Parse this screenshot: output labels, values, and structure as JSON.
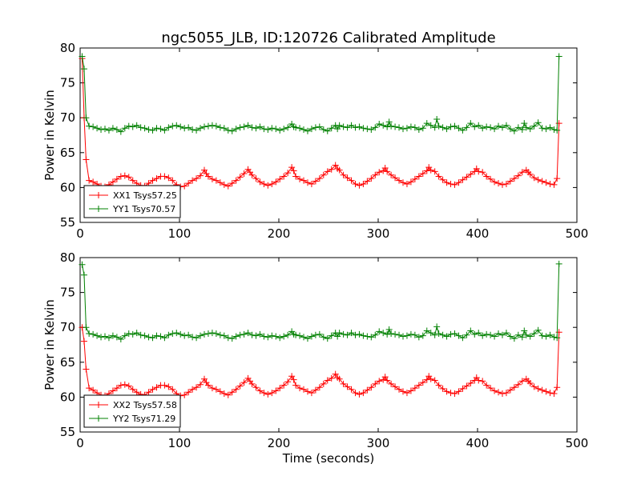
{
  "page": {
    "title": "ngc5055_JLB, ID:120726 Calibrated Amplitude",
    "xlabel": "Time (seconds)"
  },
  "colors": {
    "xx": "#ff0000",
    "yy": "#008000",
    "axes": "#000000",
    "background": "#ffffff"
  },
  "chart_data": [
    {
      "type": "line",
      "title": "ngc5055_JLB, ID:120726 Calibrated Amplitude",
      "xlabel": "",
      "ylabel": "Power in Kelvin",
      "xlim": [
        0,
        500
      ],
      "ylim": [
        55,
        80
      ],
      "xticks": [
        0,
        100,
        200,
        300,
        400,
        500
      ],
      "yticks": [
        55,
        60,
        65,
        70,
        75,
        80
      ],
      "legend_position": "lower-left",
      "marker": "+",
      "series": [
        {
          "name": "XX1 Tsys57.25",
          "color": "#ff0000",
          "x": [
            2,
            4,
            6,
            9,
            13,
            17,
            21,
            25,
            29,
            33,
            37,
            41,
            45,
            49,
            53,
            57,
            61,
            65,
            69,
            73,
            77,
            81,
            85,
            89,
            93,
            97,
            101,
            105,
            109,
            113,
            117,
            121,
            125,
            127,
            129,
            133,
            137,
            141,
            145,
            149,
            153,
            157,
            161,
            165,
            169,
            171,
            173,
            177,
            181,
            185,
            189,
            193,
            197,
            201,
            205,
            209,
            213,
            215,
            217,
            221,
            225,
            229,
            233,
            237,
            241,
            245,
            249,
            253,
            257,
            259,
            261,
            265,
            269,
            273,
            277,
            281,
            285,
            289,
            293,
            297,
            301,
            305,
            307,
            309,
            313,
            317,
            321,
            325,
            329,
            333,
            337,
            341,
            345,
            349,
            351,
            353,
            357,
            361,
            365,
            369,
            373,
            377,
            381,
            385,
            389,
            393,
            397,
            399,
            401,
            405,
            409,
            413,
            417,
            421,
            425,
            429,
            433,
            437,
            441,
            445,
            449,
            451,
            453,
            457,
            461,
            465,
            469,
            473,
            477,
            480,
            482
          ],
          "values": [
            78.5,
            70,
            64,
            61,
            60.8,
            60.5,
            60.2,
            60.1,
            60.4,
            60.8,
            61.2,
            61.6,
            61.7,
            61.5,
            61,
            60.6,
            60.3,
            60.2,
            60.6,
            61,
            61.3,
            61.6,
            61.6,
            61.4,
            61,
            60.4,
            60.1,
            60.2,
            60.6,
            61,
            61.3,
            61.7,
            62.5,
            62,
            61.6,
            61.2,
            61,
            60.7,
            60.4,
            60.2,
            60.6,
            61,
            61.5,
            62,
            62.6,
            62.2,
            61.8,
            61.3,
            60.8,
            60.5,
            60.3,
            60.5,
            60.8,
            61.2,
            61.6,
            62.1,
            62.9,
            62.4,
            61.6,
            61.2,
            61,
            60.7,
            60.5,
            60.9,
            61.3,
            61.8,
            62.3,
            62.6,
            63.2,
            62.7,
            62.5,
            61.8,
            61.4,
            61,
            60.5,
            60.3,
            60.5,
            60.9,
            61.3,
            61.8,
            62.2,
            62.4,
            62.8,
            62.3,
            61.8,
            61.4,
            61,
            60.7,
            60.5,
            60.8,
            61.2,
            61.6,
            62,
            62.4,
            62.9,
            62.5,
            62.3,
            61.6,
            61.1,
            60.7,
            60.5,
            60.4,
            60.7,
            61.1,
            61.5,
            61.9,
            62.3,
            62.7,
            62.3,
            62.2,
            61.6,
            61.2,
            60.8,
            60.6,
            60.4,
            60.5,
            60.9,
            61.3,
            61.7,
            62.2,
            62.5,
            62.2,
            61.9,
            61.4,
            61.1,
            60.9,
            60.7,
            60.5,
            60.4,
            61.3,
            69.2
          ]
        },
        {
          "name": "YY1 Tsys70.57",
          "color": "#008000",
          "x": [
            2,
            4,
            6,
            9,
            13,
            17,
            21,
            25,
            29,
            33,
            37,
            41,
            45,
            49,
            53,
            57,
            61,
            65,
            69,
            73,
            77,
            81,
            85,
            89,
            93,
            97,
            101,
            105,
            109,
            113,
            117,
            121,
            125,
            129,
            133,
            137,
            141,
            145,
            149,
            153,
            157,
            161,
            165,
            169,
            173,
            177,
            181,
            185,
            189,
            193,
            197,
            201,
            205,
            209,
            213,
            215,
            217,
            221,
            225,
            229,
            233,
            237,
            241,
            245,
            249,
            253,
            257,
            259,
            261,
            265,
            269,
            273,
            277,
            281,
            285,
            289,
            293,
            297,
            301,
            305,
            309,
            311,
            313,
            317,
            321,
            325,
            329,
            333,
            337,
            341,
            345,
            349,
            353,
            357,
            359,
            361,
            365,
            369,
            373,
            377,
            381,
            385,
            389,
            393,
            397,
            401,
            405,
            409,
            413,
            417,
            421,
            425,
            429,
            433,
            437,
            441,
            445,
            447,
            449,
            453,
            457,
            461,
            465,
            469,
            473,
            477,
            480,
            482
          ],
          "values": [
            78.8,
            77,
            70,
            68.8,
            68.7,
            68.5,
            68.3,
            68.4,
            68.2,
            68.5,
            68.3,
            68,
            68.5,
            68.8,
            68.7,
            68.9,
            68.6,
            68.5,
            68.3,
            68.2,
            68.5,
            68.4,
            68.2,
            68.6,
            68.8,
            68.9,
            68.7,
            68.5,
            68.6,
            68.3,
            68.2,
            68.5,
            68.7,
            68.8,
            68.9,
            68.8,
            68.6,
            68.5,
            68.2,
            68.1,
            68.4,
            68.6,
            68.7,
            68.9,
            68.6,
            68.5,
            68.7,
            68.4,
            68.3,
            68.5,
            68.4,
            68.2,
            68.4,
            68.6,
            69.1,
            68.7,
            68.6,
            68.5,
            68.3,
            68.1,
            68.4,
            68.6,
            68.7,
            68.3,
            68.1,
            68.5,
            68.9,
            68.4,
            68.9,
            68.7,
            68.6,
            68.9,
            68.6,
            68.7,
            68.5,
            68.4,
            68.3,
            68.6,
            69.1,
            68.9,
            68.7,
            69.4,
            68.8,
            68.7,
            68.6,
            68.4,
            68.5,
            68.7,
            68.6,
            68.3,
            68.5,
            69.2,
            68.9,
            68.6,
            69.8,
            68.8,
            68.6,
            68.4,
            68.7,
            68.8,
            68.5,
            68.2,
            68.6,
            69.2,
            68.7,
            68.9,
            68.5,
            68.7,
            68.6,
            68.4,
            68.8,
            68.6,
            68.9,
            68.4,
            68.1,
            68.6,
            68.3,
            69.2,
            68.6,
            68.4,
            68.8,
            69.3,
            68.5,
            68.4,
            68.6,
            68.3,
            68.2,
            78.8
          ]
        }
      ]
    },
    {
      "type": "line",
      "title": "",
      "xlabel": "Time (seconds)",
      "ylabel": "Power in Kelvin",
      "xlim": [
        0,
        500
      ],
      "ylim": [
        55,
        80
      ],
      "xticks": [
        0,
        100,
        200,
        300,
        400,
        500
      ],
      "yticks": [
        55,
        60,
        65,
        70,
        75,
        80
      ],
      "legend_position": "lower-left",
      "marker": "+",
      "series": [
        {
          "name": "XX2 Tsys57.58",
          "color": "#ff0000",
          "x": [
            2,
            4,
            6,
            9,
            13,
            17,
            21,
            25,
            29,
            33,
            37,
            41,
            45,
            49,
            53,
            57,
            61,
            65,
            69,
            73,
            77,
            81,
            85,
            89,
            93,
            97,
            101,
            105,
            109,
            113,
            117,
            121,
            125,
            127,
            129,
            133,
            137,
            141,
            145,
            149,
            153,
            157,
            161,
            165,
            169,
            171,
            173,
            177,
            181,
            185,
            189,
            193,
            197,
            201,
            205,
            209,
            213,
            215,
            217,
            221,
            225,
            229,
            233,
            237,
            241,
            245,
            249,
            253,
            257,
            259,
            261,
            265,
            269,
            273,
            277,
            281,
            285,
            289,
            293,
            297,
            301,
            305,
            307,
            309,
            313,
            317,
            321,
            325,
            329,
            333,
            337,
            341,
            345,
            349,
            351,
            353,
            357,
            361,
            365,
            369,
            373,
            377,
            381,
            385,
            389,
            393,
            397,
            399,
            401,
            405,
            409,
            413,
            417,
            421,
            425,
            429,
            433,
            437,
            441,
            445,
            449,
            451,
            453,
            457,
            461,
            465,
            469,
            473,
            477,
            480,
            482
          ],
          "values": [
            70,
            68,
            64,
            61.3,
            61,
            60.6,
            60.3,
            60.2,
            60.5,
            60.9,
            61.3,
            61.7,
            61.8,
            61.6,
            61.1,
            60.7,
            60.4,
            60.3,
            60.7,
            61.1,
            61.4,
            61.7,
            61.7,
            61.5,
            61.1,
            60.5,
            60.2,
            60.3,
            60.7,
            61.1,
            61.4,
            61.8,
            62.6,
            62.1,
            61.7,
            61.3,
            61.1,
            60.8,
            60.5,
            60.3,
            60.7,
            61.1,
            61.6,
            62.1,
            62.7,
            62.3,
            61.9,
            61.4,
            60.9,
            60.6,
            60.4,
            60.6,
            60.9,
            61.3,
            61.7,
            62.2,
            63,
            62.5,
            61.7,
            61.3,
            61.1,
            60.8,
            60.6,
            61,
            61.4,
            61.9,
            62.4,
            62.7,
            63.3,
            62.8,
            62.6,
            61.9,
            61.5,
            61.1,
            60.6,
            60.4,
            60.6,
            61,
            61.4,
            61.9,
            62.3,
            62.5,
            62.9,
            62.4,
            61.9,
            61.5,
            61.1,
            60.8,
            60.6,
            60.9,
            61.3,
            61.7,
            62.1,
            62.5,
            63,
            62.6,
            62.4,
            61.7,
            61.2,
            60.8,
            60.6,
            60.5,
            60.8,
            61.2,
            61.6,
            62,
            62.4,
            62.8,
            62.4,
            62.3,
            61.7,
            61.3,
            60.9,
            60.7,
            60.5,
            60.6,
            61,
            61.4,
            61.8,
            62.3,
            62.6,
            62.3,
            62,
            61.5,
            61.2,
            61,
            60.8,
            60.6,
            60.5,
            61.4,
            69.3
          ]
        },
        {
          "name": "YY2 Tsys71.29",
          "color": "#008000",
          "x": [
            2,
            4,
            6,
            9,
            13,
            17,
            21,
            25,
            29,
            33,
            37,
            41,
            45,
            49,
            53,
            57,
            61,
            65,
            69,
            73,
            77,
            81,
            85,
            89,
            93,
            97,
            101,
            105,
            109,
            113,
            117,
            121,
            125,
            129,
            133,
            137,
            141,
            145,
            149,
            153,
            157,
            161,
            165,
            169,
            173,
            177,
            181,
            185,
            189,
            193,
            197,
            201,
            205,
            209,
            213,
            215,
            217,
            221,
            225,
            229,
            233,
            237,
            241,
            245,
            249,
            253,
            257,
            259,
            261,
            265,
            269,
            273,
            277,
            281,
            285,
            289,
            293,
            297,
            301,
            305,
            309,
            311,
            313,
            317,
            321,
            325,
            329,
            333,
            337,
            341,
            345,
            349,
            353,
            357,
            359,
            361,
            365,
            369,
            373,
            377,
            381,
            385,
            389,
            393,
            397,
            401,
            405,
            409,
            413,
            417,
            421,
            425,
            429,
            433,
            437,
            441,
            445,
            447,
            449,
            453,
            457,
            461,
            465,
            469,
            473,
            477,
            480,
            482
          ],
          "values": [
            79,
            77.5,
            70,
            69.1,
            69,
            68.8,
            68.6,
            68.7,
            68.5,
            68.8,
            68.6,
            68.3,
            68.8,
            69.1,
            69,
            69.2,
            68.9,
            68.8,
            68.6,
            68.5,
            68.8,
            68.7,
            68.5,
            68.9,
            69.1,
            69.2,
            69,
            68.8,
            68.9,
            68.6,
            68.5,
            68.8,
            69,
            69.1,
            69.2,
            69.1,
            68.9,
            68.8,
            68.5,
            68.4,
            68.7,
            68.9,
            69,
            69.2,
            68.9,
            68.8,
            69,
            68.7,
            68.6,
            68.8,
            68.7,
            68.5,
            68.7,
            68.9,
            69.4,
            69,
            68.9,
            68.8,
            68.6,
            68.4,
            68.7,
            68.9,
            69,
            68.6,
            68.4,
            68.8,
            69.2,
            68.7,
            69.2,
            69,
            68.9,
            69.2,
            68.9,
            69,
            68.8,
            68.7,
            68.6,
            68.9,
            69.4,
            69.2,
            69,
            69.7,
            69.1,
            69,
            68.9,
            68.7,
            68.8,
            69,
            68.9,
            68.6,
            68.8,
            69.5,
            69.2,
            68.9,
            70.1,
            69.1,
            68.9,
            68.7,
            69,
            69.1,
            68.8,
            68.5,
            68.9,
            69.5,
            69,
            69.2,
            68.8,
            69,
            68.9,
            68.7,
            69.1,
            68.9,
            69.2,
            68.7,
            68.4,
            68.9,
            68.6,
            69.5,
            68.9,
            68.7,
            69.1,
            69.6,
            68.8,
            68.7,
            68.9,
            68.6,
            68.5,
            79.1
          ]
        }
      ]
    }
  ]
}
